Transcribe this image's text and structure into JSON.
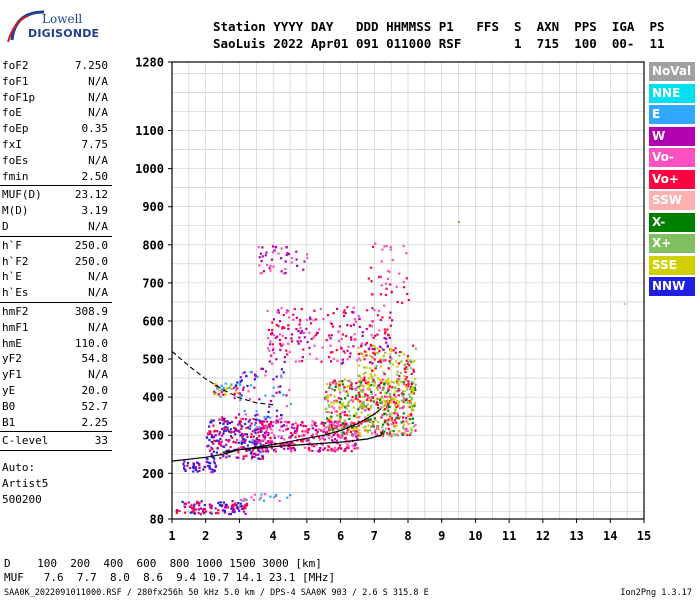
{
  "logo": {
    "line1": "Lowell",
    "line2": "DIGISONDE"
  },
  "header": {
    "line1": "Station YYYY DAY   DDD HHMMSS P1   FFS  S  AXN  PPS  IGA  PS",
    "line2": "SaoLuis 2022 Apr01 091 011000 RSF       1  715  100  00-  11"
  },
  "params": [
    {
      "key": "foF2",
      "value": "7.250"
    },
    {
      "key": "foF1",
      "value": "N/A"
    },
    {
      "key": "foF1p",
      "value": "N/A"
    },
    {
      "key": "foE",
      "value": "N/A"
    },
    {
      "key": "foEp",
      "value": "0.35"
    },
    {
      "key": "fxI",
      "value": "7.75"
    },
    {
      "key": "foEs",
      "value": "N/A"
    },
    {
      "key": "fmin",
      "value": "2.50",
      "sep": true
    },
    {
      "key": "MUF(D)",
      "value": "23.12"
    },
    {
      "key": "M(D)",
      "value": "3.19"
    },
    {
      "key": "D",
      "value": "N/A",
      "sep": true
    },
    {
      "key": "h`F",
      "value": "250.0"
    },
    {
      "key": "h`F2",
      "value": "250.0"
    },
    {
      "key": "h`E",
      "value": "N/A"
    },
    {
      "key": "h`Es",
      "value": "N/A",
      "sep": true
    },
    {
      "key": "hmF2",
      "value": "308.9"
    },
    {
      "key": "hmF1",
      "value": "N/A"
    },
    {
      "key": "hmE",
      "value": "110.0"
    },
    {
      "key": "yF2",
      "value": "54.8"
    },
    {
      "key": "yF1",
      "value": "N/A"
    },
    {
      "key": "yE",
      "value": "20.0"
    },
    {
      "key": "B0",
      "value": "52.7"
    },
    {
      "key": "B1",
      "value": "2.25",
      "sep": true
    },
    {
      "key": "C-level",
      "value": "33",
      "sep": true
    }
  ],
  "auto": [
    "Auto:",
    "Artist5",
    "500200"
  ],
  "legend": [
    {
      "label": "NoVal",
      "color": "#a0a0a0"
    },
    {
      "label": "NNE",
      "color": "#00e0f0"
    },
    {
      "label": "E",
      "color": "#30a8ff"
    },
    {
      "label": "W",
      "color": "#b000b0"
    },
    {
      "label": "Vo-",
      "color": "#ff50c0"
    },
    {
      "label": "Vo+",
      "color": "#ff0040"
    },
    {
      "label": "SSW",
      "color": "#ffb0b0"
    },
    {
      "label": "X-",
      "color": "#008000"
    },
    {
      "label": "X+",
      "color": "#80c060"
    },
    {
      "label": "SSE",
      "color": "#d0d000"
    },
    {
      "label": "NNW",
      "color": "#2020e0"
    }
  ],
  "chart_data": {
    "type": "scatter",
    "xlim": [
      1,
      15
    ],
    "ylim": [
      80,
      1280
    ],
    "x_ticks": [
      1,
      2,
      3,
      4,
      5,
      6,
      7,
      8,
      9,
      10,
      11,
      12,
      13,
      14,
      15
    ],
    "y_ticks": [
      80,
      200,
      300,
      400,
      500,
      600,
      700,
      800,
      900,
      1000,
      1100,
      1280
    ],
    "grid": true,
    "clusters": [
      {
        "x": [
          1.1,
          3.2
        ],
        "y": [
          95,
          130
        ],
        "colors": [
          "#2020e0",
          "#b000b0",
          "#ff0040"
        ],
        "n": 110
      },
      {
        "x": [
          3.0,
          4.5
        ],
        "y": [
          130,
          150
        ],
        "colors": [
          "#ff50c0",
          "#30a8ff"
        ],
        "n": 20
      },
      {
        "x": [
          1.3,
          2.3
        ],
        "y": [
          205,
          235
        ],
        "colors": [
          "#2020e0",
          "#b000b0"
        ],
        "n": 45
      },
      {
        "x": [
          2.0,
          3.8
        ],
        "y": [
          240,
          350
        ],
        "colors": [
          "#2020e0",
          "#b000b0",
          "#ff0040"
        ],
        "n": 230
      },
      {
        "x": [
          2.8,
          4.5
        ],
        "y": [
          260,
          480
        ],
        "colors": [
          "#2020e0",
          "#b000b0",
          "#30a8ff",
          "#ff50c0"
        ],
        "n": 120
      },
      {
        "x": [
          3.5,
          6.5
        ],
        "y": [
          260,
          340
        ],
        "colors": [
          "#ff0040",
          "#ff50c0",
          "#b000b0"
        ],
        "n": 320
      },
      {
        "x": [
          5.5,
          8.2
        ],
        "y": [
          300,
          450
        ],
        "colors": [
          "#ff0040",
          "#ff50c0",
          "#80c060",
          "#008000",
          "#d0d000"
        ],
        "n": 520
      },
      {
        "x": [
          6.5,
          8.2
        ],
        "y": [
          380,
          540
        ],
        "colors": [
          "#ff0040",
          "#d0d000",
          "#80c060"
        ],
        "n": 200
      },
      {
        "x": [
          2.2,
          3.0
        ],
        "y": [
          400,
          440
        ],
        "colors": [
          "#ff0040",
          "#d0d000",
          "#30a8ff"
        ],
        "n": 40
      },
      {
        "x": [
          3.8,
          7.5
        ],
        "y": [
          490,
          640
        ],
        "colors": [
          "#ff0040",
          "#ff50c0",
          "#b000b0"
        ],
        "n": 230
      },
      {
        "x": [
          3.5,
          5.0
        ],
        "y": [
          720,
          800
        ],
        "colors": [
          "#b000b0",
          "#ff50c0"
        ],
        "n": 45
      },
      {
        "x": [
          6.8,
          8.0
        ],
        "y": [
          640,
          810
        ],
        "colors": [
          "#ff0040",
          "#ff50c0"
        ],
        "n": 40
      },
      {
        "x": [
          9.4,
          9.5
        ],
        "y": [
          860,
          870
        ],
        "colors": [
          "#80c060"
        ],
        "n": 1
      },
      {
        "x": [
          14.3,
          14.4
        ],
        "y": [
          640,
          650
        ],
        "colors": [
          "#ffb0b0"
        ],
        "n": 1
      }
    ],
    "profile_curve": {
      "x": [
        1.0,
        2.0,
        2.5,
        3.0,
        4.0,
        5.0,
        5.5,
        6.0,
        6.5,
        7.0,
        7.2
      ],
      "y": [
        232,
        242,
        250,
        262,
        275,
        292,
        300,
        312,
        330,
        355,
        370
      ]
    },
    "trace_curve": {
      "x": [
        2.5,
        3.0,
        4.0,
        5.0,
        6.0,
        6.8,
        7.2,
        7.25
      ],
      "y": [
        255,
        262,
        270,
        276,
        282,
        290,
        300,
        310
      ]
    },
    "dashed_curve": {
      "x": [
        1.0,
        1.5,
        2.0,
        2.5,
        3.0,
        3.5,
        4.0
      ],
      "y": [
        520,
        482,
        448,
        420,
        398,
        385,
        380
      ]
    }
  },
  "footer": {
    "line1": "D    100  200  400  600  800 1000 1500 3000 [km]",
    "line2": "MUF   7.6  7.7  8.0  8.6  9.4 10.7 14.1 23.1 [MHz]"
  },
  "bottom_line": "SAA0K_2022091011000.RSF / 280fx256h 50 kHz 5.0 km / DPS-4 SAA0K 903 / 2.6 S 315.8 E",
  "version": "Ion2Png 1.3.17"
}
